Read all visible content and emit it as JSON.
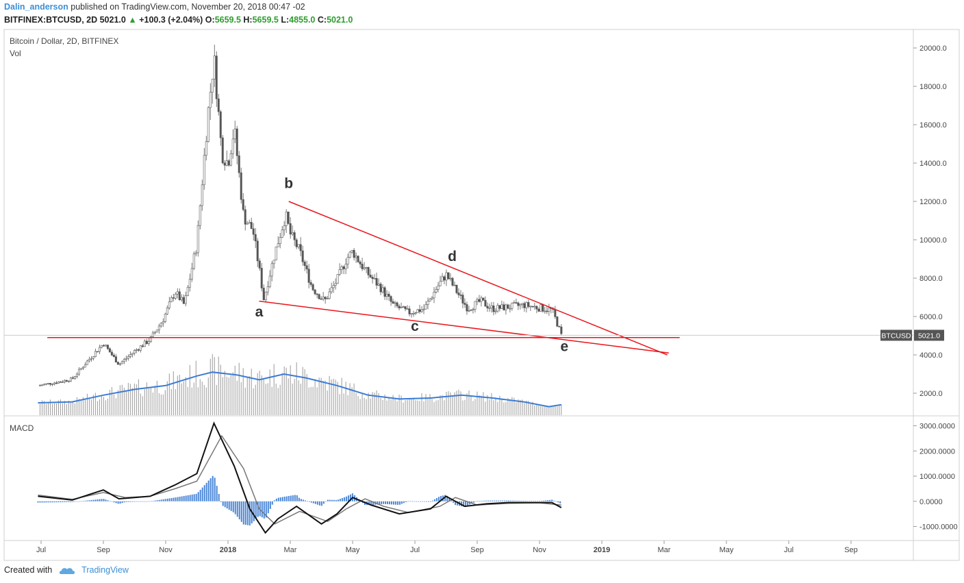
{
  "header": {
    "user": "Dalin_anderson",
    "published": "published on TradingView.com, November 20, 2018 00:47 -02",
    "symbol_line": "BITFINEX:BTCUSD, 2D",
    "last": "5021.0",
    "change": "+100.3 (+2.04%)",
    "o_label": "O:",
    "o_value": "5659.5",
    "h_label": "H:",
    "h_value": "5659.5",
    "l_label": "L:",
    "l_value": "4855.0",
    "c_label": "C:",
    "c_value": "5021.0"
  },
  "footer": {
    "created_with": "Created with",
    "brand": "TradingView"
  },
  "colors": {
    "accent": "#3b8fd6",
    "up": "#2e9c2e",
    "trendline": "#e8141a",
    "vol_ma": "#3a7bd5",
    "macd_hist": "#4a86d6"
  },
  "chart_data": {
    "type": "candlestick",
    "title": "Bitcoin / Dollar, 2D, BITFINEX",
    "volume_label": "Vol",
    "macd_label": "MACD",
    "price_ticks": [
      "20000.0",
      "18000.0",
      "16000.0",
      "14000.0",
      "12000.0",
      "10000.0",
      "8000.0",
      "6000.0",
      "4000.0",
      "2000.0"
    ],
    "price_ylim": [
      1200,
      21000
    ],
    "macd_ticks": [
      "3000.0000",
      "2000.0000",
      "1000.0000",
      "0.0000",
      "-1000.0000"
    ],
    "x_labels": [
      "Jul",
      "Sep",
      "Nov",
      "2018",
      "Mar",
      "May",
      "Jul",
      "Sep",
      "Nov",
      "2019",
      "Mar",
      "May",
      "Jul",
      "Sep"
    ],
    "x_months": [
      0,
      2,
      4,
      6,
      8,
      10,
      12,
      14,
      16,
      18,
      20,
      22,
      24,
      26
    ],
    "last_price_label": "BTCUSD",
    "last_price": "5021.0",
    "price_series": [
      {
        "m": -0.1,
        "p": 2400
      },
      {
        "m": 0.6,
        "p": 2600
      },
      {
        "m": 1.0,
        "p": 2750
      },
      {
        "m": 1.5,
        "p": 3700
      },
      {
        "m": 2.0,
        "p": 4600
      },
      {
        "m": 2.5,
        "p": 3500
      },
      {
        "m": 3.0,
        "p": 4200
      },
      {
        "m": 3.5,
        "p": 4800
      },
      {
        "m": 3.9,
        "p": 5800
      },
      {
        "m": 4.3,
        "p": 7300
      },
      {
        "m": 4.6,
        "p": 6600
      },
      {
        "m": 5.0,
        "p": 9800
      },
      {
        "m": 5.35,
        "p": 16500
      },
      {
        "m": 5.55,
        "p": 19500
      },
      {
        "m": 5.8,
        "p": 14500
      },
      {
        "m": 6.0,
        "p": 14000
      },
      {
        "m": 6.2,
        "p": 15800
      },
      {
        "m": 6.5,
        "p": 11200
      },
      {
        "m": 6.8,
        "p": 10500
      },
      {
        "m": 7.0,
        "p": 8500
      },
      {
        "m": 7.15,
        "p": 6900
      },
      {
        "m": 7.5,
        "p": 9300
      },
      {
        "m": 7.85,
        "p": 11300
      },
      {
        "m": 8.0,
        "p": 10300
      },
      {
        "m": 8.3,
        "p": 9400
      },
      {
        "m": 8.7,
        "p": 7500
      },
      {
        "m": 9.1,
        "p": 6800
      },
      {
        "m": 9.5,
        "p": 7900
      },
      {
        "m": 9.8,
        "p": 9000
      },
      {
        "m": 10.0,
        "p": 9400
      },
      {
        "m": 10.4,
        "p": 8400
      },
      {
        "m": 10.9,
        "p": 7500
      },
      {
        "m": 11.3,
        "p": 6600
      },
      {
        "m": 11.8,
        "p": 6200
      },
      {
        "m": 12.3,
        "p": 6400
      },
      {
        "m": 12.7,
        "p": 7500
      },
      {
        "m": 13.0,
        "p": 8200
      },
      {
        "m": 13.3,
        "p": 7400
      },
      {
        "m": 13.7,
        "p": 6400
      },
      {
        "m": 14.1,
        "p": 6800
      },
      {
        "m": 14.5,
        "p": 6400
      },
      {
        "m": 15.0,
        "p": 6500
      },
      {
        "m": 15.5,
        "p": 6600
      },
      {
        "m": 16.0,
        "p": 6450
      },
      {
        "m": 16.4,
        "p": 6350
      },
      {
        "m": 16.6,
        "p": 5500
      },
      {
        "m": 16.7,
        "p": 5021
      }
    ],
    "volume_ma": [
      {
        "m": -0.1,
        "v": 1500
      },
      {
        "m": 1.0,
        "v": 1550
      },
      {
        "m": 2.0,
        "v": 1900
      },
      {
        "m": 3.0,
        "v": 2200
      },
      {
        "m": 4.0,
        "v": 2400
      },
      {
        "m": 5.0,
        "v": 2900
      },
      {
        "m": 5.5,
        "v": 3100
      },
      {
        "m": 6.3,
        "v": 2950
      },
      {
        "m": 7.0,
        "v": 2700
      },
      {
        "m": 7.8,
        "v": 3000
      },
      {
        "m": 8.5,
        "v": 2800
      },
      {
        "m": 9.5,
        "v": 2400
      },
      {
        "m": 10.5,
        "v": 1900
      },
      {
        "m": 11.5,
        "v": 1700
      },
      {
        "m": 12.5,
        "v": 1750
      },
      {
        "m": 13.5,
        "v": 1900
      },
      {
        "m": 14.5,
        "v": 1750
      },
      {
        "m": 15.5,
        "v": 1550
      },
      {
        "m": 16.3,
        "v": 1300
      },
      {
        "m": 16.7,
        "v": 1400
      }
    ],
    "macd_line": [
      {
        "m": -0.1,
        "v": 200
      },
      {
        "m": 1.0,
        "v": 50
      },
      {
        "m": 2.0,
        "v": 450
      },
      {
        "m": 2.5,
        "v": 100
      },
      {
        "m": 3.5,
        "v": 200
      },
      {
        "m": 4.3,
        "v": 650
      },
      {
        "m": 5.0,
        "v": 1100
      },
      {
        "m": 5.55,
        "v": 3100
      },
      {
        "m": 6.2,
        "v": 1400
      },
      {
        "m": 6.7,
        "v": -300
      },
      {
        "m": 7.2,
        "v": -1250
      },
      {
        "m": 7.6,
        "v": -700
      },
      {
        "m": 8.2,
        "v": -200
      },
      {
        "m": 9.0,
        "v": -900
      },
      {
        "m": 9.5,
        "v": -500
      },
      {
        "m": 10.0,
        "v": 150
      },
      {
        "m": 10.6,
        "v": -150
      },
      {
        "m": 11.5,
        "v": -500
      },
      {
        "m": 12.5,
        "v": -300
      },
      {
        "m": 13.0,
        "v": 200
      },
      {
        "m": 13.6,
        "v": -200
      },
      {
        "m": 14.3,
        "v": -100
      },
      {
        "m": 15.0,
        "v": -50
      },
      {
        "m": 16.0,
        "v": -50
      },
      {
        "m": 16.4,
        "v": -50
      },
      {
        "m": 16.7,
        "v": -250
      }
    ],
    "signal_line": [
      {
        "m": -0.1,
        "v": 250
      },
      {
        "m": 1.0,
        "v": 80
      },
      {
        "m": 2.0,
        "v": 350
      },
      {
        "m": 2.7,
        "v": 150
      },
      {
        "m": 3.5,
        "v": 200
      },
      {
        "m": 4.3,
        "v": 500
      },
      {
        "m": 5.0,
        "v": 800
      },
      {
        "m": 5.8,
        "v": 2600
      },
      {
        "m": 6.5,
        "v": 1300
      },
      {
        "m": 7.0,
        "v": -300
      },
      {
        "m": 7.5,
        "v": -900
      },
      {
        "m": 8.3,
        "v": -400
      },
      {
        "m": 9.2,
        "v": -800
      },
      {
        "m": 9.8,
        "v": -300
      },
      {
        "m": 10.4,
        "v": 100
      },
      {
        "m": 11.0,
        "v": -200
      },
      {
        "m": 11.8,
        "v": -450
      },
      {
        "m": 12.8,
        "v": -200
      },
      {
        "m": 13.3,
        "v": 150
      },
      {
        "m": 14.0,
        "v": -150
      },
      {
        "m": 15.0,
        "v": -80
      },
      {
        "m": 16.0,
        "v": -60
      },
      {
        "m": 16.7,
        "v": -150
      }
    ],
    "trendlines": [
      {
        "name": "upper",
        "from": {
          "m": 7.95,
          "p": 12000
        },
        "to": {
          "m": 20.1,
          "p": 4000
        }
      },
      {
        "name": "lower",
        "from": {
          "m": 7.0,
          "p": 6800
        },
        "to": {
          "m": 20.15,
          "p": 4100
        }
      },
      {
        "name": "support",
        "from": {
          "m": 0.2,
          "p": 4900
        },
        "to": {
          "m": 20.5,
          "p": 4900
        }
      }
    ],
    "wave_labels": [
      {
        "text": "a",
        "m": 7.0,
        "p": 6000
      },
      {
        "text": "b",
        "m": 7.95,
        "p": 12700
      },
      {
        "text": "c",
        "m": 12.0,
        "p": 5250
      },
      {
        "text": "d",
        "m": 13.2,
        "p": 8900
      },
      {
        "text": "e",
        "m": 16.8,
        "p": 4200
      }
    ]
  }
}
